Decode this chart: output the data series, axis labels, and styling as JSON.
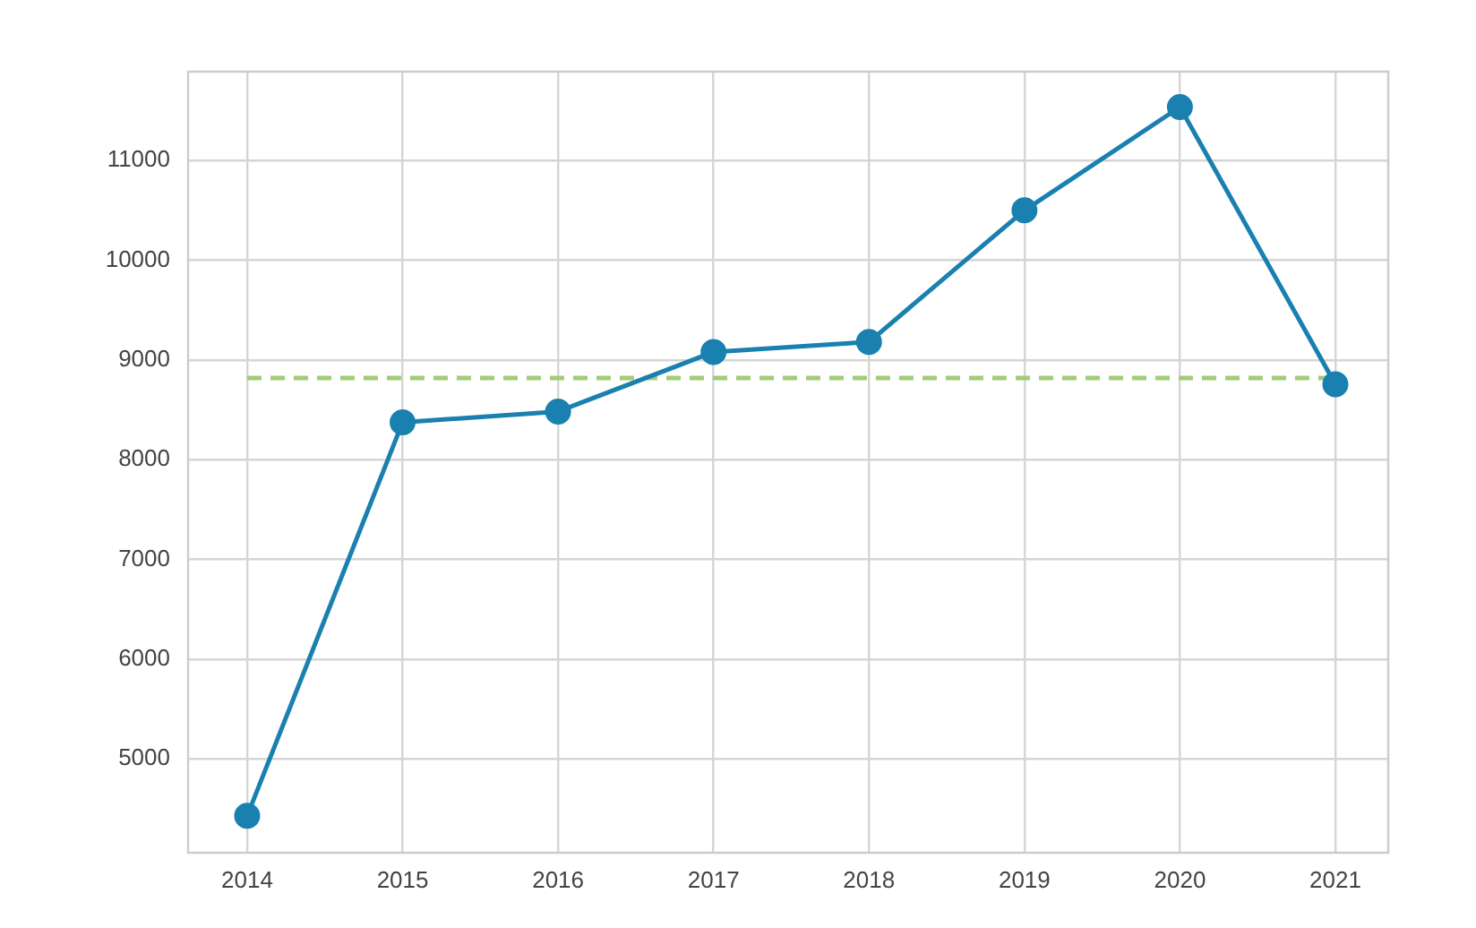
{
  "chart_data": {
    "type": "line",
    "x": [
      2014,
      2015,
      2016,
      2017,
      2018,
      2019,
      2020,
      2021
    ],
    "xlim": [
      2013.62,
      2021.34
    ],
    "xticks": [
      2014,
      2015,
      2016,
      2017,
      2018,
      2019,
      2020,
      2021
    ],
    "ylim": [
      4060,
      11890
    ],
    "yticks": [
      5000,
      6000,
      7000,
      8000,
      9000,
      10000,
      11000
    ],
    "grid": true,
    "legend": false,
    "marker": "circle",
    "line_style": "solid",
    "series": [
      {
        "color": "#1a80b0",
        "values": [
          4430,
          8375,
          8483,
          9080,
          9180,
          10500,
          11535,
          8757
        ]
      },
      {
        "type": "line",
        "x": [
          2014,
          2021
        ],
        "color": "#a2cc76",
        "values": [
          8820,
          8820
        ],
        "marker": "none",
        "line_style": "dashed"
      }
    ]
  }
}
